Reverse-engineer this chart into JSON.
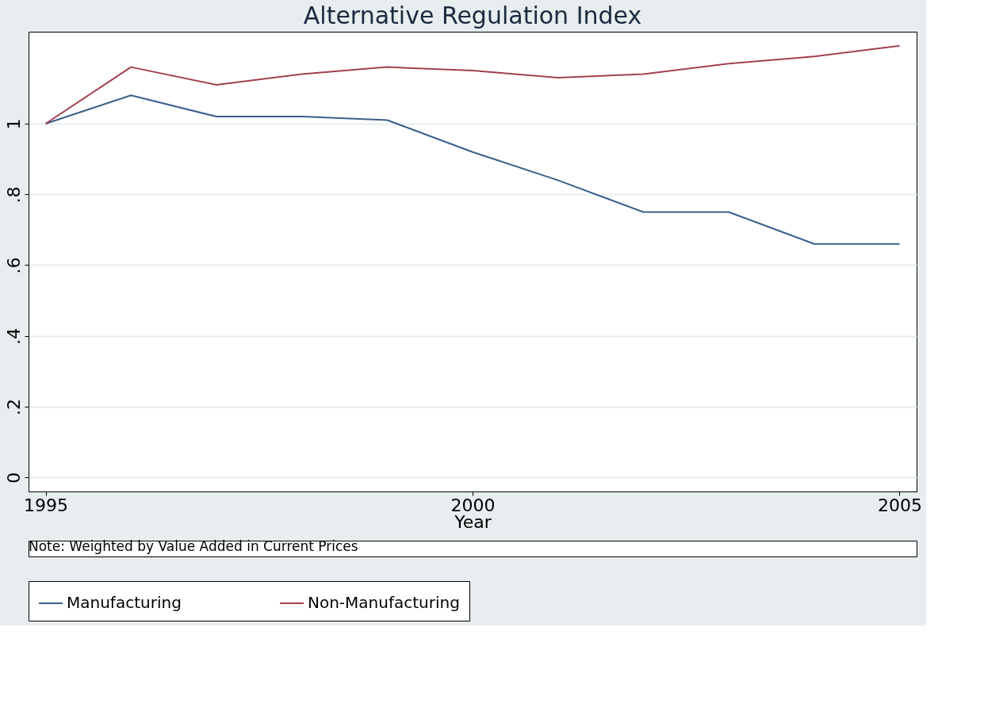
{
  "chart_data": {
    "type": "line",
    "title": "Alternative Regulation Index",
    "xlabel": "Year",
    "x": [
      1995,
      1996,
      1997,
      1998,
      1999,
      2000,
      2001,
      2002,
      2003,
      2004,
      2005
    ],
    "series": [
      {
        "name": "Manufacturing",
        "color": "#3b5f8c",
        "values": [
          1.0,
          1.08,
          1.02,
          1.02,
          1.01,
          0.92,
          0.84,
          0.75,
          0.75,
          0.66,
          0.66
        ]
      },
      {
        "name": "Non-Manufacturing",
        "color": "#a3404f",
        "values": [
          1.0,
          1.16,
          1.11,
          1.14,
          1.16,
          1.15,
          1.13,
          1.14,
          1.17,
          1.19,
          1.22
        ]
      }
    ],
    "xlim": [
      1994.8,
      2005.2
    ],
    "xticks": [
      1995,
      2000,
      2005
    ],
    "ylim": [
      -0.04,
      1.26
    ],
    "yticks": [
      0,
      {
        "value": 0.2,
        "label": ".2"
      },
      {
        "value": 0.4,
        "label": ".4"
      },
      {
        "value": 0.6,
        "label": ".6"
      },
      {
        "value": 0.8,
        "label": ".8"
      },
      1
    ],
    "grid": "y",
    "legend": "bottom",
    "marker": "none",
    "line_style": "solid",
    "annotations": [
      "Note: Weighted by Value Added in Current Prices"
    ]
  }
}
